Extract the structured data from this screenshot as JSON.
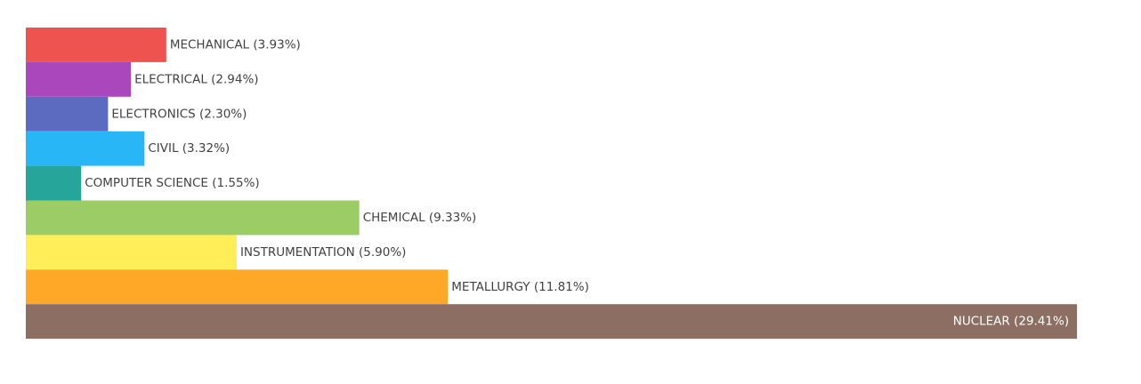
{
  "chart_data": {
    "type": "bar",
    "orientation": "horizontal",
    "title": "",
    "xlabel": "",
    "ylabel": "",
    "grid": false,
    "axes_visible": false,
    "xlim": [
      0,
      30
    ],
    "categories": [
      "MECHANICAL",
      "ELECTRICAL",
      "ELECTRONICS",
      "CIVIL",
      "COMPUTER SCIENCE",
      "CHEMICAL",
      "INSTRUMENTATION",
      "METALLURGY",
      "NUCLEAR"
    ],
    "values": [
      3.93,
      2.94,
      2.3,
      3.32,
      1.55,
      9.33,
      5.9,
      11.81,
      29.41
    ],
    "labels": [
      "MECHANICAL (3.93%)",
      "ELECTRICAL (2.94%)",
      "ELECTRONICS (2.30%)",
      "CIVIL (3.32%)",
      "COMPUTER SCIENCE (1.55%)",
      "CHEMICAL (9.33%)",
      "INSTRUMENTATION (5.90%)",
      "METALLURGY (11.81%)",
      "NUCLEAR (29.41%)"
    ],
    "colors": [
      "#ef5350",
      "#ab47bc",
      "#5c6bc0",
      "#29b6f6",
      "#26a69a",
      "#9ccc65",
      "#ffee58",
      "#ffa726",
      "#8d6e63"
    ]
  }
}
